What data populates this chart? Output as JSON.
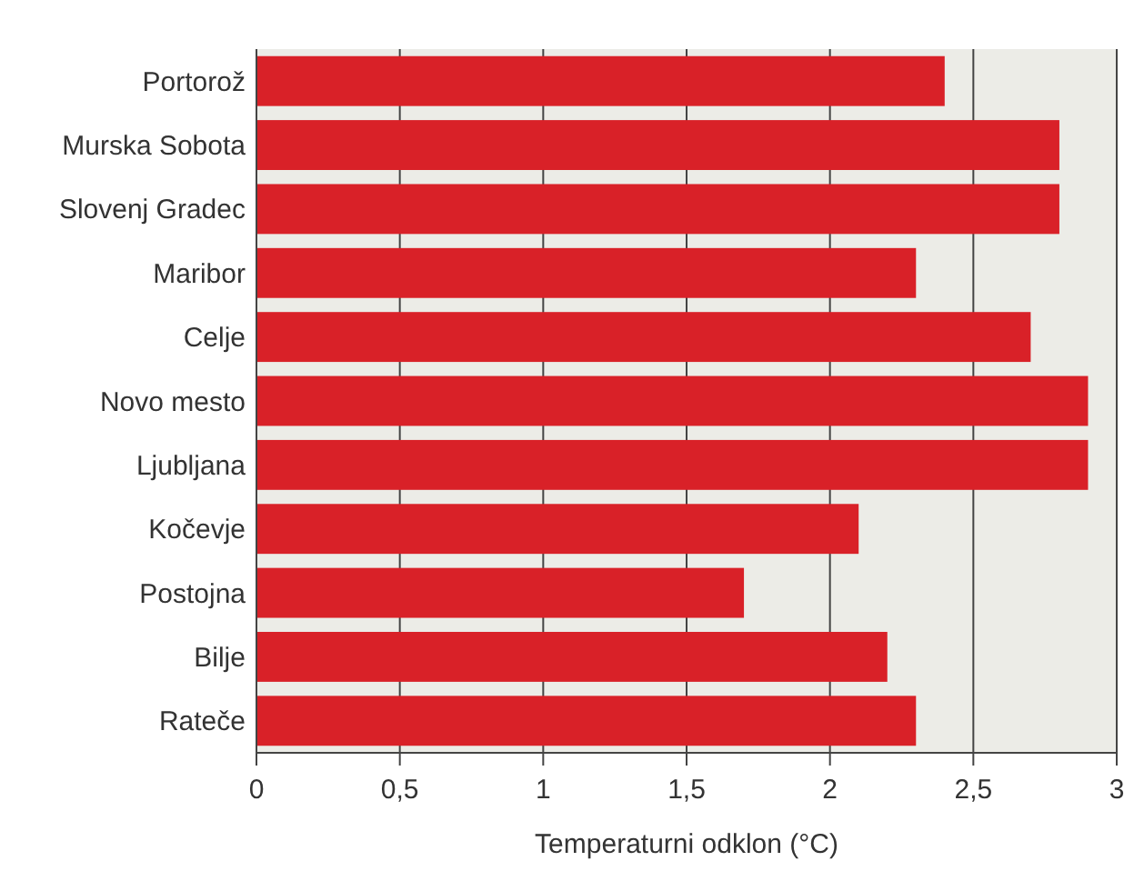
{
  "chart_data": {
    "type": "bar",
    "orientation": "horizontal",
    "xlabel": "Temperaturni odklon (°C)",
    "categories": [
      "Portorož",
      "Murska Sobota",
      "Slovenj Gradec",
      "Maribor",
      "Celje",
      "Novo mesto",
      "Ljubljana",
      "Kočevje",
      "Postojna",
      "Bilje",
      "Rateče"
    ],
    "values": [
      2.4,
      2.8,
      2.8,
      2.3,
      2.7,
      2.9,
      2.9,
      2.1,
      1.7,
      2.2,
      2.3
    ],
    "color": "#d92128",
    "xlim": [
      0,
      3
    ],
    "xticks": [
      0,
      {
        "value": 0.5,
        "label": "0,5"
      },
      1,
      {
        "value": 1.5,
        "label": "1,5"
      },
      2,
      {
        "value": 2.5,
        "label": "2,5"
      },
      3
    ],
    "grid": "x"
  }
}
